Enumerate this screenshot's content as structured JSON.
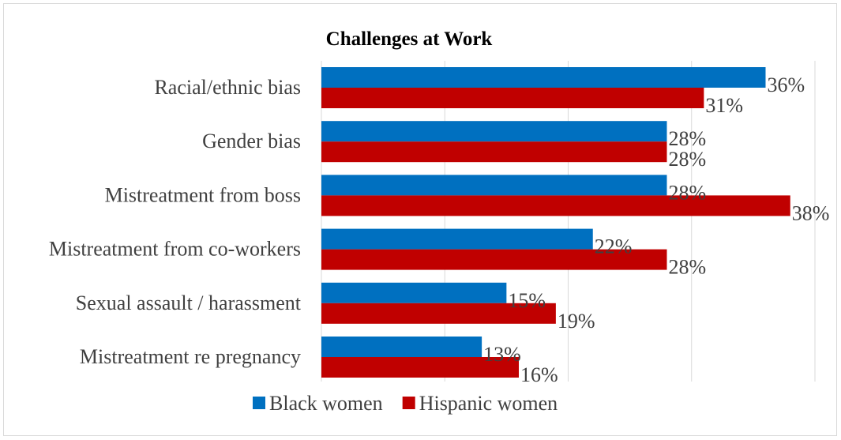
{
  "chart_data": {
    "type": "bar",
    "orientation": "horizontal",
    "title": "Challenges at Work",
    "categories": [
      "Racial/ethnic bias",
      "Gender bias",
      "Mistreatment from boss",
      "Mistreatment from co-workers",
      "Sexual assault / harassment",
      "Mistreatment re pregnancy"
    ],
    "series": [
      {
        "name": "Black women",
        "color": "#0070c0",
        "values": [
          36,
          28,
          28,
          22,
          15,
          13
        ]
      },
      {
        "name": "Hispanic women",
        "color": "#c00000",
        "values": [
          31,
          28,
          38,
          28,
          19,
          16
        ]
      }
    ],
    "value_suffix": "%",
    "xlim": [
      0,
      40
    ],
    "grid": true,
    "legend": "bottom"
  }
}
